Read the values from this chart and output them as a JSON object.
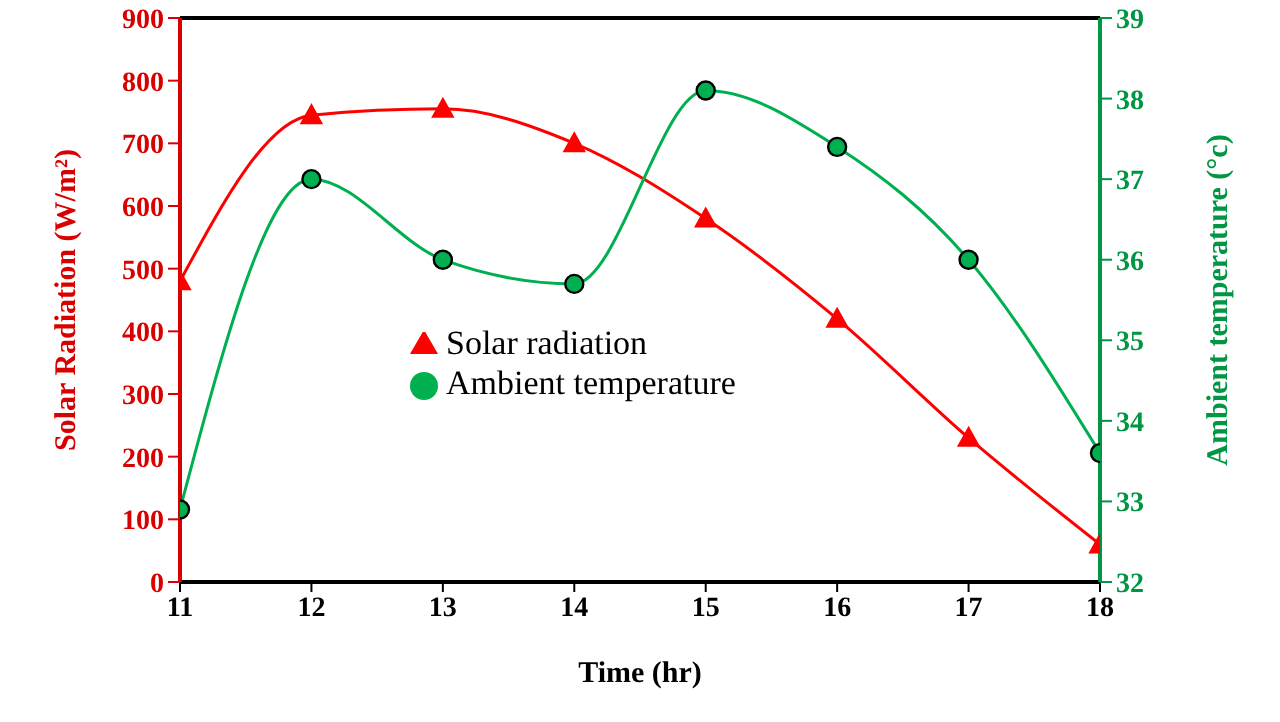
{
  "chart_data": {
    "type": "line",
    "xlabel": "Time (hr)",
    "ylabel": "Solar Radiation (W/m²)",
    "y2label": "Ambient temperature (°c)",
    "x": [
      11,
      12,
      13,
      14,
      15,
      16,
      17,
      18
    ],
    "xlim": [
      11,
      18
    ],
    "xticks": [
      11,
      12,
      13,
      14,
      15,
      16,
      17,
      18
    ],
    "ylim": [
      0,
      900
    ],
    "yticks": [
      0,
      100,
      200,
      300,
      400,
      500,
      600,
      700,
      800,
      900
    ],
    "y2lim": [
      32,
      39
    ],
    "y2ticks": [
      32,
      33,
      34,
      35,
      36,
      37,
      38,
      39
    ],
    "grid": false,
    "legend": "center",
    "series": [
      {
        "name": "Solar radiation",
        "color": "#ff0000",
        "marker": "triangle",
        "values": [
          480,
          745,
          755,
          700,
          580,
          420,
          230,
          60
        ]
      },
      {
        "name": "Ambient temperature",
        "color": "#00b050",
        "marker": "circle",
        "axis": "y2",
        "values": [
          32.9,
          37.0,
          36.0,
          35.7,
          38.1,
          37.4,
          36.0,
          33.6
        ]
      }
    ]
  }
}
